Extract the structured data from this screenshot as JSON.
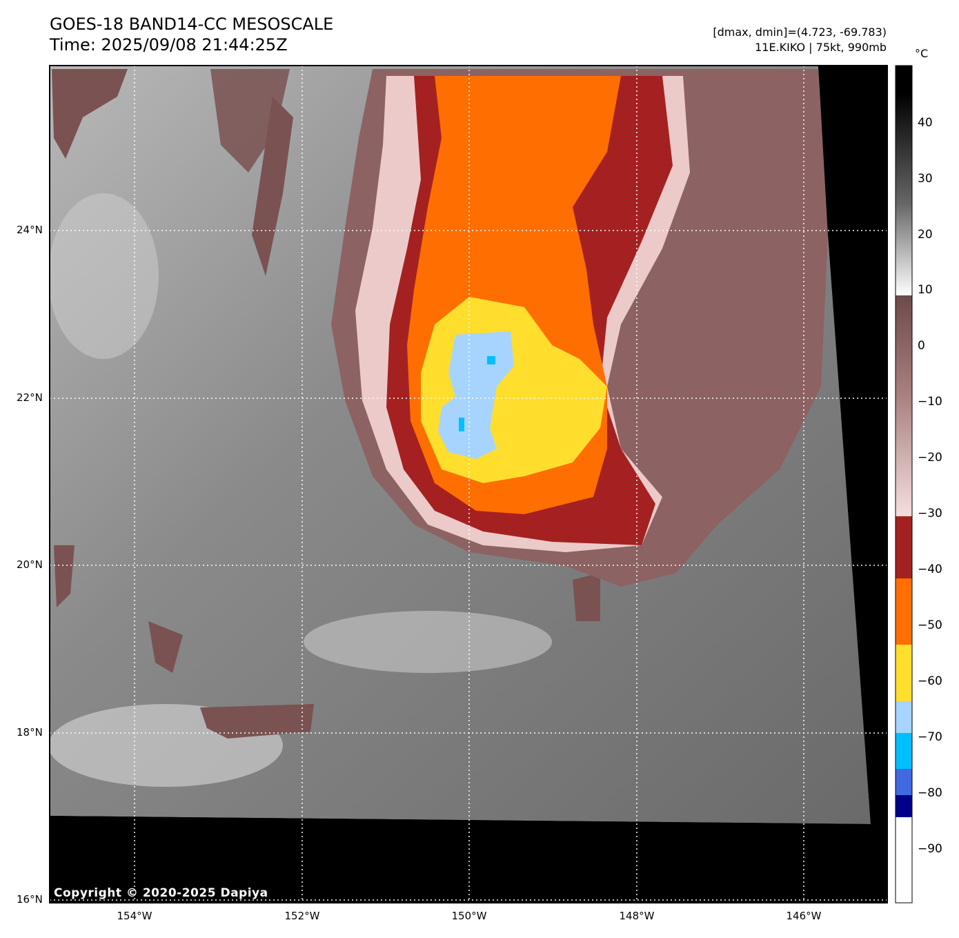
{
  "title": {
    "line1": "GOES-18 BAND14-CC MESOSCALE",
    "line2": "Time: 2025/09/08 21:44:25Z"
  },
  "meta": {
    "range": "[dmax, dmin]=(4.723, -69.783)",
    "storm": "11E.KIKO | 75kt, 990mb"
  },
  "latitude_labels": [
    "24°N",
    "22°N",
    "20°N",
    "18°N",
    "16°N"
  ],
  "longitude_labels": [
    "154°W",
    "152°W",
    "150°W",
    "148°W",
    "146°W"
  ],
  "colorbar": {
    "unit": "°C",
    "ticks": [
      "40",
      "30",
      "20",
      "10",
      "0",
      "−10",
      "−20",
      "−30",
      "−40",
      "−50",
      "−60",
      "−70",
      "−80",
      "−90"
    ],
    "colors": {
      "warm_black": "#000000",
      "white": "#ffffff",
      "brown": "#7a5252",
      "pink": "#f2d6d6",
      "dark_red": "#a52121",
      "orange": "#ff6e00",
      "yellow": "#ffde2e",
      "light_blue": "#a6d4ff",
      "cyan": "#00bfff",
      "royal_blue": "#4169e1",
      "navy": "#00008b"
    }
  },
  "copyright": "Copyright © 2020-2025 Dapiya"
}
